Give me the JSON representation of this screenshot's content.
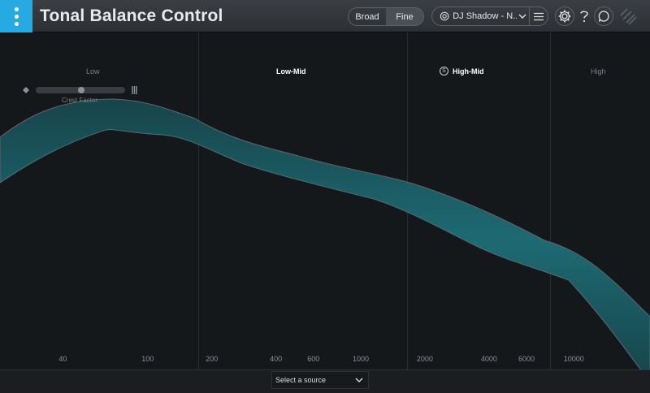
{
  "header": {
    "title": "Tonal Balance Control",
    "view_modes": [
      "Broad",
      "Fine"
    ],
    "selected_view": "Fine",
    "preset": "DJ Shadow - N..."
  },
  "bands": {
    "low": "Low",
    "low_mid": "Low-Mid",
    "high_mid": "High-Mid",
    "high": "High",
    "solo_label": "S"
  },
  "crest": {
    "label": "Crest Factor",
    "value": 0.5
  },
  "freq_axis": {
    "labels": [
      "40",
      "100",
      "200",
      "400",
      "600",
      "1000",
      "2000",
      "4000",
      "6000",
      "10000"
    ],
    "values": [
      40,
      100,
      200,
      400,
      600,
      1000,
      2000,
      4000,
      6000,
      10000
    ],
    "range_hz": [
      21,
      22000
    ]
  },
  "footer": {
    "source": "Select a source"
  },
  "colors": {
    "accent": "#27a9e1",
    "band_fill": "#1b5a60",
    "band_center": "#1e7079",
    "band_edge": "#5a6a70"
  }
}
